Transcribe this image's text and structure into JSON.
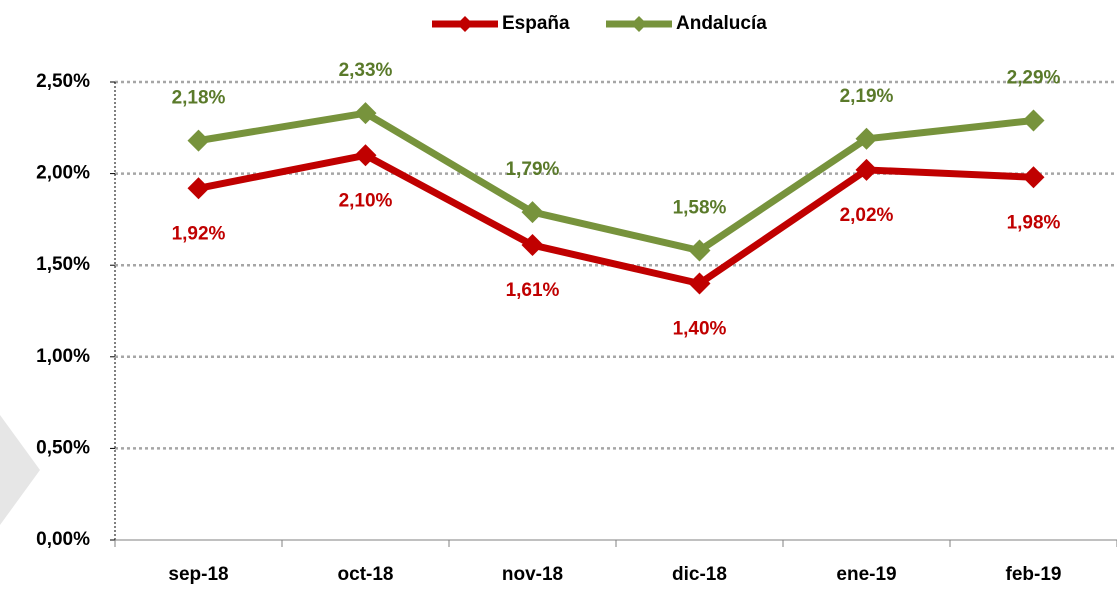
{
  "chart_data": {
    "type": "line",
    "categories": [
      "sep-18",
      "oct-18",
      "nov-18",
      "dic-18",
      "ene-19",
      "feb-19"
    ],
    "series": [
      {
        "name": "España",
        "color": "#c00000",
        "label_color": "#c00000",
        "values": [
          1.92,
          2.1,
          1.61,
          1.4,
          2.02,
          1.98
        ],
        "value_labels": [
          "1,92%",
          "2,10%",
          "1,61%",
          "1,40%",
          "2,02%",
          "1,98%"
        ]
      },
      {
        "name": "Andalucía",
        "color": "#77933c",
        "label_color": "#5a7a2a",
        "values": [
          2.18,
          2.33,
          1.79,
          1.58,
          2.19,
          2.29
        ],
        "value_labels": [
          "2,18%",
          "2,33%",
          "1,79%",
          "1,58%",
          "2,19%",
          "2,29%"
        ]
      }
    ],
    "ylim": [
      0,
      2.5
    ],
    "yticks": [
      {
        "value": 0,
        "label": "0,00%"
      },
      {
        "value": 0.5,
        "label": "0,50%"
      },
      {
        "value": 1,
        "label": "1,00%"
      },
      {
        "value": 1.5,
        "label": "1,50%"
      },
      {
        "value": 2,
        "label": "2,00%"
      },
      {
        "value": 2.5,
        "label": "2,50%"
      }
    ],
    "grid": true,
    "legend": "top"
  }
}
